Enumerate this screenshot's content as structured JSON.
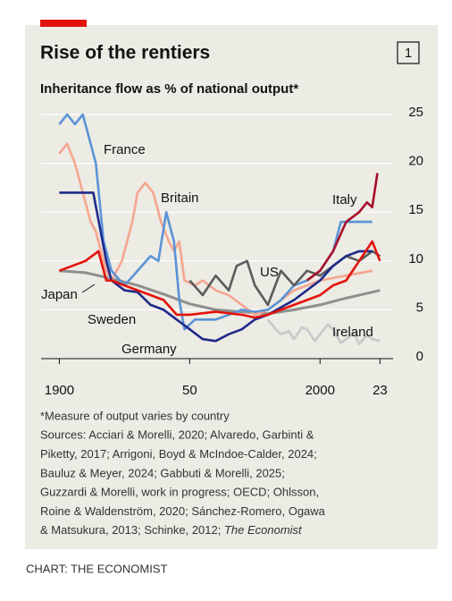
{
  "chart_data": {
    "type": "line",
    "title": "Rise of the rentiers",
    "badge": "1",
    "subtitle": "Inheritance flow as % of national output*",
    "notes": [
      "*Measure of output varies by country",
      "Sources: Acciari & Morelli, 2020; Alvaredo, Garbinti &",
      "Piketty, 2017; Arrigoni, Boyd & McIndoe-Calder, 2024;",
      "Bauluz & Meyer, 2024; Gabbuti & Morelli, 2025;",
      "Guzzardi & Morelli, work in progress; OECD; Ohlsson,",
      "Roine & Waldenström, 2020; Sánchez-Romero, Ogawa",
      "& Matsukura, 2013; Schinke, 2012; "
    ],
    "notes_italic": "The Economist",
    "source": "CHART: THE ECONOMIST",
    "xlim": [
      1893,
      2028
    ],
    "xticks": [
      1900,
      {
        "value": 1950,
        "label": "50"
      },
      2000,
      {
        "value": 2023,
        "label": "23"
      }
    ],
    "ylim": [
      0,
      25
    ],
    "yticks": [
      0,
      5,
      10,
      15,
      20,
      25
    ],
    "grid": true,
    "series": [
      {
        "name": "Ireland",
        "color": "#c8c9cc",
        "x": [
          1980,
          1983,
          1985,
          1988,
          1990,
          1993,
          1995,
          1998,
          2000,
          2003,
          2005,
          2008,
          2010,
          2013,
          2015,
          2018,
          2020,
          2023
        ],
        "values": [
          4,
          3,
          2.5,
          2.8,
          2,
          3.2,
          3,
          1.8,
          2.5,
          3.5,
          3,
          1.6,
          2,
          2.6,
          1.5,
          2.4,
          2,
          1.8
        ]
      },
      {
        "name": "Japan",
        "color": "#8f8f8f",
        "x": [
          1900,
          1910,
          1920,
          1930,
          1940,
          1950,
          1960,
          1970,
          1980,
          1990,
          2000,
          2010,
          2020,
          2023
        ],
        "values": [
          9,
          8.8,
          8.2,
          7.5,
          6.6,
          5.6,
          5,
          4.8,
          4.6,
          5,
          5.5,
          6.2,
          6.8,
          7
        ]
      },
      {
        "name": "Britain",
        "color": "#f5a68f",
        "x": [
          1900,
          1903,
          1906,
          1909,
          1912,
          1914,
          1918,
          1920,
          1924,
          1928,
          1930,
          1933,
          1936,
          1939,
          1942,
          1944,
          1946,
          1948,
          1952,
          1955,
          1960,
          1965,
          1970,
          1975,
          1980,
          1990,
          2000,
          2010,
          2020
        ],
        "values": [
          21,
          22,
          20,
          17,
          14,
          13,
          9,
          8,
          10,
          14,
          17,
          18,
          17,
          14,
          12,
          11,
          12,
          8,
          7.5,
          8,
          7,
          6.5,
          5.5,
          4.5,
          5,
          7,
          8,
          8.5,
          9
        ]
      },
      {
        "name": "France",
        "color": "#5b93d6",
        "x": [
          1900,
          1903,
          1906,
          1909,
          1912,
          1914,
          1917,
          1920,
          1925,
          1930,
          1935,
          1938,
          1941,
          1944,
          1946,
          1948,
          1952,
          1960,
          1970,
          1975,
          1980,
          1985,
          1990,
          1995,
          2000,
          2005,
          2008,
          2012,
          2016,
          2020
        ],
        "values": [
          24,
          25,
          24,
          25,
          22,
          20,
          12,
          9,
          7.5,
          9,
          10.5,
          10,
          15,
          12,
          6,
          3,
          4,
          4,
          5,
          4.8,
          5,
          6,
          7.5,
          8,
          9,
          11,
          14,
          14,
          14,
          14
        ]
      },
      {
        "name": "US",
        "color": "#5b5b5b",
        "x": [
          1950,
          1955,
          1960,
          1965,
          1968,
          1972,
          1975,
          1980,
          1985,
          1990,
          1995,
          2000,
          2005,
          2010,
          2015,
          2020,
          2023
        ],
        "values": [
          8,
          6.5,
          8.5,
          7,
          9.5,
          10,
          7.5,
          5.5,
          9,
          7.5,
          9,
          8.5,
          9.5,
          10.5,
          10,
          11,
          10.5
        ]
      },
      {
        "name": "Germany",
        "color": "#1f2a8a",
        "x": [
          1900,
          1910,
          1913,
          1918,
          1920,
          1925,
          1930,
          1935,
          1940,
          1945,
          1950,
          1955,
          1960,
          1965,
          1970,
          1975,
          1980,
          1990,
          2000,
          2005,
          2010,
          2015,
          2020
        ],
        "values": [
          17,
          17,
          17,
          10,
          8,
          7,
          6.8,
          5.5,
          5,
          4,
          3,
          2,
          1.8,
          2.5,
          3,
          4,
          4.5,
          6,
          8,
          9.5,
          10.5,
          11,
          11
        ]
      },
      {
        "name": "Sweden",
        "color": "#e3120b",
        "x": [
          1900,
          1905,
          1910,
          1915,
          1918,
          1920,
          1925,
          1930,
          1935,
          1940,
          1945,
          1950,
          1960,
          1970,
          1975,
          1980,
          1985,
          1990,
          2000,
          2005,
          2010,
          2015,
          2020,
          2023
        ],
        "values": [
          9,
          9.5,
          10,
          11,
          8,
          8,
          7.5,
          7,
          6.5,
          6,
          4.5,
          4.5,
          4.8,
          4.5,
          4.2,
          4.5,
          5,
          5.5,
          6.5,
          7.5,
          8,
          10,
          12,
          10
        ]
      },
      {
        "name": "Italy",
        "color": "#a8102b",
        "x": [
          1995,
          2000,
          2005,
          2010,
          2015,
          2018,
          2020,
          2022
        ],
        "values": [
          8,
          9,
          11,
          14,
          15,
          16,
          15.5,
          19
        ]
      }
    ]
  }
}
